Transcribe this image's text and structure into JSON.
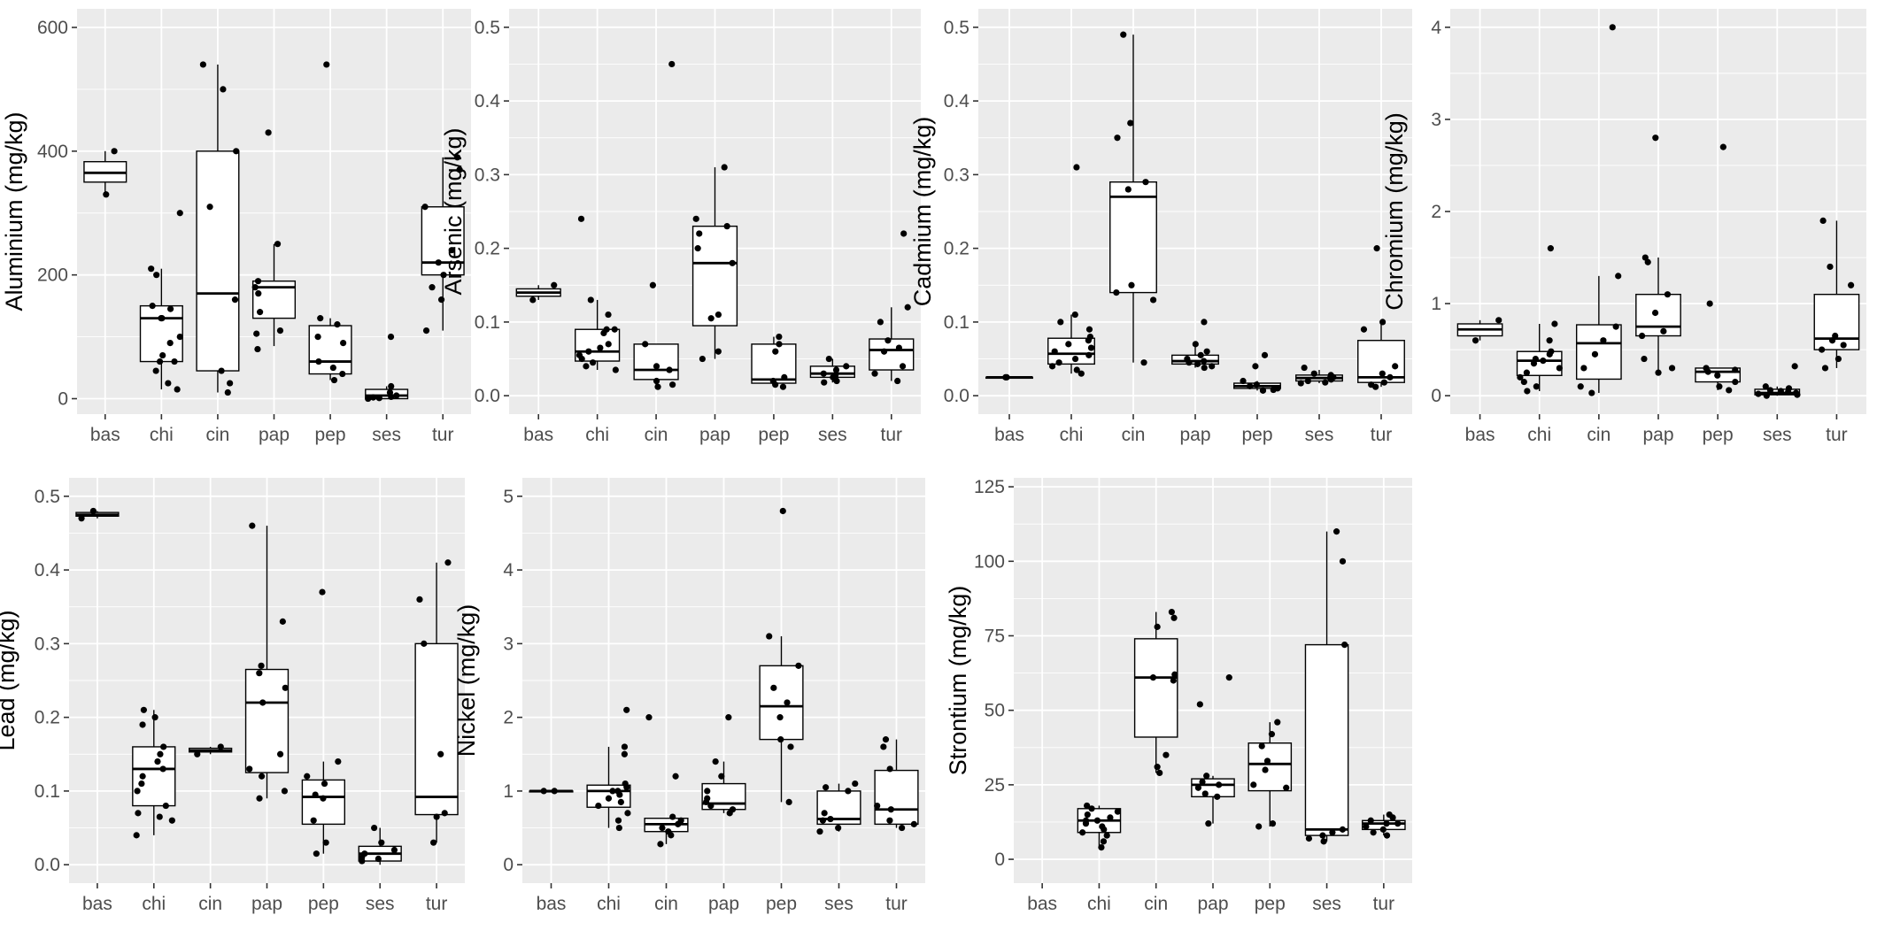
{
  "chart_data": [
    {
      "type": "box",
      "ylabel": "Aluminium (mg/kg)",
      "ylim": [
        -25,
        630
      ],
      "yticks": [
        0,
        200,
        400,
        600
      ],
      "categories": [
        "bas",
        "chi",
        "cin",
        "pap",
        "pep",
        "ses",
        "tur"
      ],
      "groups": [
        {
          "q1": 350,
          "median": 365,
          "q3": 383,
          "lo": 330,
          "hi": 400,
          "points": [
            400,
            330
          ]
        },
        {
          "q1": 60,
          "median": 130,
          "q3": 150,
          "lo": 15,
          "hi": 210,
          "points": [
            300,
            210,
            200,
            150,
            145,
            130,
            130,
            100,
            90,
            70,
            60,
            60,
            45,
            25,
            15
          ]
        },
        {
          "q1": 45,
          "median": 170,
          "q3": 400,
          "lo": 10,
          "hi": 540,
          "points": [
            540,
            500,
            400,
            310,
            160,
            45,
            25,
            10
          ]
        },
        {
          "q1": 130,
          "median": 180,
          "q3": 190,
          "lo": 85,
          "hi": 250,
          "points": [
            430,
            250,
            190,
            180,
            170,
            140,
            110,
            105,
            80
          ]
        },
        {
          "q1": 40,
          "median": 60,
          "q3": 118,
          "lo": 30,
          "hi": 130,
          "points": [
            540,
            130,
            120,
            100,
            90,
            60,
            50,
            40,
            30
          ]
        },
        {
          "q1": 0,
          "median": 5,
          "q3": 15,
          "lo": 0,
          "hi": 20,
          "points": [
            100,
            20,
            10,
            5,
            3,
            2,
            1,
            0
          ]
        },
        {
          "q1": 200,
          "median": 220,
          "q3": 310,
          "lo": 110,
          "hi": 390,
          "points": [
            390,
            370,
            310,
            240,
            220,
            200,
            180,
            160,
            110
          ]
        }
      ]
    },
    {
      "type": "box",
      "ylabel": "Arsenic (mg/kg)",
      "ylim": [
        -0.025,
        0.525
      ],
      "yticks": [
        0.0,
        0.1,
        0.2,
        0.3,
        0.4,
        0.5
      ],
      "categories": [
        "bas",
        "chi",
        "cin",
        "pap",
        "pep",
        "ses",
        "tur"
      ],
      "groups": [
        {
          "q1": 0.135,
          "median": 0.14,
          "q3": 0.145,
          "lo": 0.13,
          "hi": 0.15,
          "points": [
            0.15,
            0.13
          ]
        },
        {
          "q1": 0.047,
          "median": 0.06,
          "q3": 0.09,
          "lo": 0.035,
          "hi": 0.13,
          "points": [
            0.24,
            0.13,
            0.11,
            0.09,
            0.09,
            0.085,
            0.07,
            0.065,
            0.06,
            0.055,
            0.05,
            0.045,
            0.04,
            0.035
          ]
        },
        {
          "q1": 0.022,
          "median": 0.035,
          "q3": 0.07,
          "lo": 0.012,
          "hi": 0.07,
          "points": [
            0.45,
            0.15,
            0.07,
            0.04,
            0.035,
            0.02,
            0.015,
            0.012
          ]
        },
        {
          "q1": 0.095,
          "median": 0.18,
          "q3": 0.23,
          "lo": 0.05,
          "hi": 0.31,
          "points": [
            0.31,
            0.24,
            0.23,
            0.22,
            0.2,
            0.18,
            0.11,
            0.105,
            0.06,
            0.05
          ]
        },
        {
          "q1": 0.017,
          "median": 0.022,
          "q3": 0.07,
          "lo": 0.012,
          "hi": 0.08,
          "points": [
            0.08,
            0.07,
            0.06,
            0.025,
            0.02,
            0.015,
            0.012
          ]
        },
        {
          "q1": 0.025,
          "median": 0.03,
          "q3": 0.04,
          "lo": 0.018,
          "hi": 0.05,
          "points": [
            0.05,
            0.04,
            0.035,
            0.03,
            0.028,
            0.025,
            0.022,
            0.02,
            0.018
          ]
        },
        {
          "q1": 0.035,
          "median": 0.062,
          "q3": 0.077,
          "lo": 0.02,
          "hi": 0.12,
          "points": [
            0.22,
            0.12,
            0.1,
            0.075,
            0.065,
            0.06,
            0.04,
            0.03,
            0.02
          ]
        }
      ]
    },
    {
      "type": "box",
      "ylabel": "Cadmium (mg/kg)",
      "ylim": [
        -0.025,
        0.525
      ],
      "yticks": [
        0.0,
        0.1,
        0.2,
        0.3,
        0.4,
        0.5
      ],
      "categories": [
        "bas",
        "chi",
        "cin",
        "pap",
        "pep",
        "ses",
        "tur"
      ],
      "groups": [
        {
          "q1": 0.025,
          "median": 0.025,
          "q3": 0.025,
          "lo": 0.025,
          "hi": 0.025,
          "points": [
            0.025,
            0.025
          ]
        },
        {
          "q1": 0.043,
          "median": 0.057,
          "q3": 0.078,
          "lo": 0.03,
          "hi": 0.11,
          "points": [
            0.31,
            0.11,
            0.1,
            0.09,
            0.08,
            0.075,
            0.07,
            0.065,
            0.06,
            0.055,
            0.05,
            0.045,
            0.04,
            0.035,
            0.03
          ]
        },
        {
          "q1": 0.14,
          "median": 0.27,
          "q3": 0.29,
          "lo": 0.045,
          "hi": 0.49,
          "points": [
            0.49,
            0.37,
            0.35,
            0.29,
            0.28,
            0.15,
            0.14,
            0.13,
            0.045
          ]
        },
        {
          "q1": 0.043,
          "median": 0.047,
          "q3": 0.055,
          "lo": 0.038,
          "hi": 0.07,
          "points": [
            0.1,
            0.07,
            0.06,
            0.055,
            0.05,
            0.047,
            0.045,
            0.043,
            0.04,
            0.038
          ]
        },
        {
          "q1": 0.01,
          "median": 0.013,
          "q3": 0.017,
          "lo": 0.007,
          "hi": 0.02,
          "points": [
            0.055,
            0.04,
            0.02,
            0.015,
            0.013,
            0.01,
            0.008,
            0.007
          ]
        },
        {
          "q1": 0.02,
          "median": 0.024,
          "q3": 0.028,
          "lo": 0.017,
          "hi": 0.035,
          "points": [
            0.038,
            0.03,
            0.028,
            0.025,
            0.024,
            0.022,
            0.02,
            0.018,
            0.017
          ]
        },
        {
          "q1": 0.018,
          "median": 0.025,
          "q3": 0.075,
          "lo": 0.012,
          "hi": 0.1,
          "points": [
            0.2,
            0.1,
            0.09,
            0.04,
            0.03,
            0.025,
            0.018,
            0.015,
            0.012
          ]
        }
      ]
    },
    {
      "type": "box",
      "ylabel": "Chromium (mg/kg)",
      "ylim": [
        -0.2,
        4.2
      ],
      "yticks": [
        0,
        1,
        2,
        3,
        4
      ],
      "categories": [
        "bas",
        "chi",
        "cin",
        "pap",
        "pep",
        "ses",
        "tur"
      ],
      "groups": [
        {
          "q1": 0.65,
          "median": 0.72,
          "q3": 0.78,
          "lo": 0.6,
          "hi": 0.82,
          "points": [
            0.82,
            0.6
          ]
        },
        {
          "q1": 0.22,
          "median": 0.38,
          "q3": 0.48,
          "lo": 0.05,
          "hi": 0.78,
          "points": [
            1.6,
            0.78,
            0.6,
            0.48,
            0.45,
            0.4,
            0.38,
            0.35,
            0.3,
            0.25,
            0.2,
            0.15,
            0.1,
            0.05
          ]
        },
        {
          "q1": 0.18,
          "median": 0.57,
          "q3": 0.77,
          "lo": 0.03,
          "hi": 1.3,
          "points": [
            4.0,
            1.3,
            0.75,
            0.6,
            0.45,
            0.3,
            0.1,
            0.03
          ]
        },
        {
          "q1": 0.65,
          "median": 0.75,
          "q3": 1.1,
          "lo": 0.25,
          "hi": 1.5,
          "points": [
            2.8,
            1.5,
            1.45,
            1.1,
            0.9,
            0.7,
            0.65,
            0.4,
            0.3,
            0.25
          ]
        },
        {
          "q1": 0.15,
          "median": 0.26,
          "q3": 0.3,
          "lo": 0.06,
          "hi": 0.3,
          "points": [
            2.7,
            1.0,
            0.3,
            0.28,
            0.26,
            0.22,
            0.15,
            0.1,
            0.06
          ]
        },
        {
          "q1": 0.01,
          "median": 0.03,
          "q3": 0.07,
          "lo": 0.0,
          "hi": 0.1,
          "points": [
            0.32,
            0.1,
            0.08,
            0.06,
            0.05,
            0.04,
            0.03,
            0.02,
            0.01,
            0.0
          ]
        },
        {
          "q1": 0.5,
          "median": 0.62,
          "q3": 1.1,
          "lo": 0.3,
          "hi": 1.9,
          "points": [
            1.9,
            1.4,
            1.2,
            0.65,
            0.6,
            0.55,
            0.5,
            0.4,
            0.3
          ]
        }
      ]
    },
    {
      "type": "box",
      "ylabel": "Lead (mg/kg)",
      "ylim": [
        -0.025,
        0.525
      ],
      "yticks": [
        0.0,
        0.1,
        0.2,
        0.3,
        0.4,
        0.5
      ],
      "categories": [
        "bas",
        "chi",
        "cin",
        "pap",
        "pep",
        "ses",
        "tur"
      ],
      "groups": [
        {
          "q1": 0.473,
          "median": 0.475,
          "q3": 0.478,
          "lo": 0.47,
          "hi": 0.48,
          "points": [
            0.48,
            0.47
          ]
        },
        {
          "q1": 0.08,
          "median": 0.13,
          "q3": 0.16,
          "lo": 0.04,
          "hi": 0.21,
          "points": [
            0.21,
            0.2,
            0.19,
            0.16,
            0.15,
            0.14,
            0.13,
            0.12,
            0.11,
            0.1,
            0.08,
            0.07,
            0.065,
            0.06,
            0.04
          ]
        },
        {
          "q1": 0.153,
          "median": 0.155,
          "q3": 0.158,
          "lo": 0.15,
          "hi": 0.16,
          "points": [
            0.16,
            0.15
          ]
        },
        {
          "q1": 0.125,
          "median": 0.22,
          "q3": 0.265,
          "lo": 0.09,
          "hi": 0.46,
          "points": [
            0.46,
            0.33,
            0.27,
            0.26,
            0.24,
            0.22,
            0.15,
            0.13,
            0.12,
            0.1,
            0.09
          ]
        },
        {
          "q1": 0.055,
          "median": 0.092,
          "q3": 0.115,
          "lo": 0.015,
          "hi": 0.14,
          "points": [
            0.37,
            0.14,
            0.12,
            0.11,
            0.095,
            0.09,
            0.06,
            0.03,
            0.015
          ]
        },
        {
          "q1": 0.005,
          "median": 0.015,
          "q3": 0.025,
          "lo": 0.0,
          "hi": 0.05,
          "points": [
            0.05,
            0.03,
            0.02,
            0.015,
            0.01,
            0.008,
            0.005
          ]
        },
        {
          "q1": 0.068,
          "median": 0.092,
          "q3": 0.3,
          "lo": 0.03,
          "hi": 0.41,
          "points": [
            0.41,
            0.36,
            0.3,
            0.15,
            0.07,
            0.065,
            0.03
          ]
        }
      ]
    },
    {
      "type": "box",
      "ylabel": "Nickel (mg/kg)",
      "ylim": [
        -0.25,
        5.25
      ],
      "yticks": [
        0,
        1,
        2,
        3,
        4,
        5
      ],
      "categories": [
        "bas",
        "chi",
        "cin",
        "pap",
        "pep",
        "ses",
        "tur"
      ],
      "groups": [
        {
          "q1": 1.0,
          "median": 1.0,
          "q3": 1.0,
          "lo": 1.0,
          "hi": 1.0,
          "points": [
            1.0,
            1.0
          ]
        },
        {
          "q1": 0.78,
          "median": 1.0,
          "q3": 1.08,
          "lo": 0.5,
          "hi": 1.6,
          "points": [
            2.1,
            1.6,
            1.5,
            1.1,
            1.05,
            1.0,
            1.0,
            0.95,
            0.9,
            0.85,
            0.8,
            0.7,
            0.6,
            0.5
          ]
        },
        {
          "q1": 0.45,
          "median": 0.55,
          "q3": 0.63,
          "lo": 0.28,
          "hi": 0.63,
          "points": [
            2.0,
            1.2,
            0.65,
            0.6,
            0.55,
            0.5,
            0.45,
            0.4,
            0.28
          ]
        },
        {
          "q1": 0.75,
          "median": 0.83,
          "q3": 1.1,
          "lo": 0.7,
          "hi": 1.4,
          "points": [
            2.0,
            1.4,
            1.2,
            1.0,
            0.9,
            0.85,
            0.8,
            0.75,
            0.7
          ]
        },
        {
          "q1": 1.7,
          "median": 2.15,
          "q3": 2.7,
          "lo": 0.85,
          "hi": 3.1,
          "points": [
            4.8,
            3.1,
            2.7,
            2.4,
            2.2,
            2.0,
            1.7,
            1.6,
            0.85
          ]
        },
        {
          "q1": 0.55,
          "median": 0.62,
          "q3": 1.0,
          "lo": 0.45,
          "hi": 1.1,
          "points": [
            1.1,
            1.05,
            1.0,
            0.7,
            0.62,
            0.6,
            0.5,
            0.45
          ]
        },
        {
          "q1": 0.55,
          "median": 0.75,
          "q3": 1.28,
          "lo": 0.5,
          "hi": 1.7,
          "points": [
            1.7,
            1.6,
            1.3,
            0.8,
            0.75,
            0.6,
            0.55,
            0.5
          ]
        }
      ]
    },
    {
      "type": "box",
      "ylabel": "Strontium (mg/kg)",
      "ylim": [
        -8,
        128
      ],
      "yticks": [
        0,
        25,
        50,
        75,
        100,
        125
      ],
      "categories": [
        "bas",
        "chi",
        "cin",
        "pap",
        "pep",
        "ses",
        "tur"
      ],
      "groups": [
        {
          "q1": null,
          "median": null,
          "q3": null,
          "lo": null,
          "hi": null,
          "points": []
        },
        {
          "q1": 9,
          "median": 13,
          "q3": 17,
          "lo": 4,
          "hi": 18,
          "points": [
            18,
            17,
            16,
            15,
            14,
            13,
            13,
            12,
            11,
            10,
            9,
            8,
            6,
            4
          ]
        },
        {
          "q1": 41,
          "median": 61,
          "q3": 74,
          "lo": 29,
          "hi": 83,
          "points": [
            83,
            81,
            78,
            62,
            61,
            60,
            35,
            31,
            29
          ]
        },
        {
          "q1": 21,
          "median": 25,
          "q3": 27,
          "lo": 12,
          "hi": 28,
          "points": [
            61,
            52,
            28,
            26,
            25,
            24,
            22,
            21,
            12
          ]
        },
        {
          "q1": 23,
          "median": 32,
          "q3": 39,
          "lo": 11,
          "hi": 46,
          "points": [
            46,
            42,
            38,
            33,
            30,
            25,
            24,
            12,
            11
          ]
        },
        {
          "q1": 8,
          "median": 10,
          "q3": 72,
          "lo": 6,
          "hi": 110,
          "points": [
            110,
            100,
            72,
            10,
            9,
            8,
            7,
            6
          ]
        },
        {
          "q1": 10,
          "median": 12,
          "q3": 13,
          "lo": 8,
          "hi": 15,
          "points": [
            15,
            14,
            13,
            12,
            12,
            11,
            10,
            9,
            8
          ]
        }
      ]
    }
  ]
}
